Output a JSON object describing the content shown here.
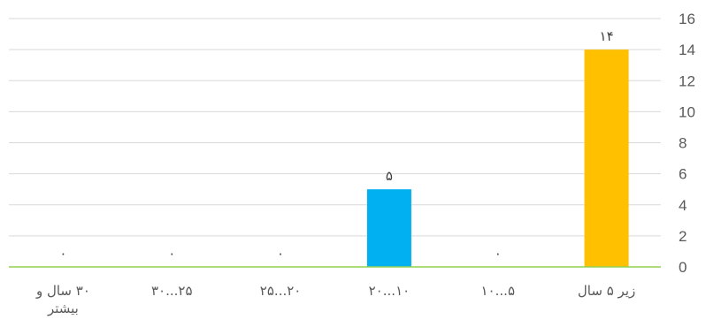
{
  "chart_data": {
    "type": "bar",
    "categories": [
      "زیر ۵ سال",
      "۵...۱۰",
      "۱۰...۲۰",
      "۲۰...۲۵",
      "۲۵...۳۰",
      "۳۰ سال و بیشتر"
    ],
    "category_lines": [
      [
        "زیر ۵ سال"
      ],
      [
        "۵...۱۰"
      ],
      [
        "۱۰...۲۰"
      ],
      [
        "۲۰...۲۵"
      ],
      [
        "۲۵...۳۰"
      ],
      [
        "۳۰ سال و",
        "بیشتر"
      ]
    ],
    "values": [
      14,
      0,
      5,
      0,
      0,
      0
    ],
    "data_labels": [
      "۱۴",
      "۰",
      "۵",
      "۰",
      "۰",
      "۰"
    ],
    "bar_colors": [
      "#FFC000",
      "#FFC000",
      "#00B0F0",
      "#FFC000",
      "#FFC000",
      "#FFC000"
    ],
    "ylim": [
      0,
      16
    ],
    "yticks": [
      0,
      2,
      4,
      6,
      8,
      10,
      12,
      14,
      16
    ],
    "y_axis_side": "right",
    "category_order": "right-to-left",
    "grid": true,
    "gridline_color": "#D9D9D9",
    "baseline_color": "#92D050",
    "title": "",
    "xlabel": "",
    "ylabel": ""
  }
}
